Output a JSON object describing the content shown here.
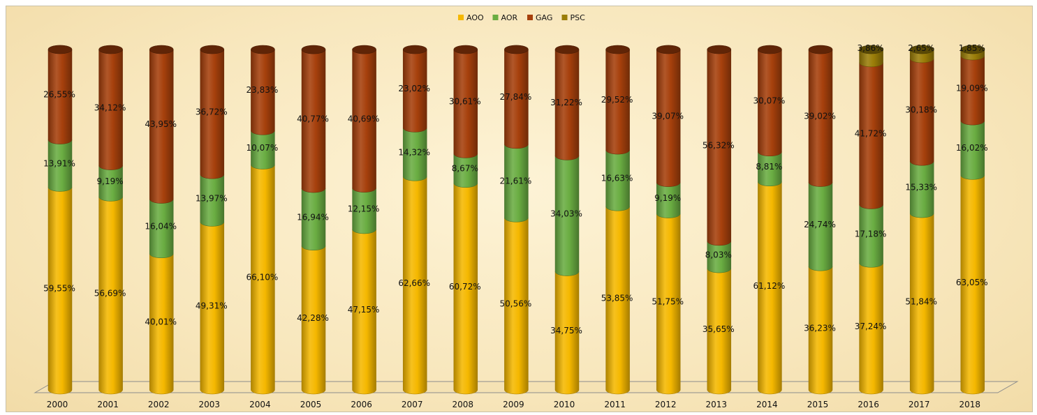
{
  "chart_data": {
    "type": "bar",
    "stacked": "percent",
    "style": "3d-cylinder",
    "title": "",
    "xlabel": "",
    "ylabel": "",
    "ylim": [
      0,
      100
    ],
    "grid": false,
    "legend_position": "top",
    "categories": [
      "2000",
      "2001",
      "2002",
      "2003",
      "2004",
      "2005",
      "2006",
      "2007",
      "2008",
      "2009",
      "2010",
      "2011",
      "2012",
      "2013",
      "2014",
      "2015",
      "2016",
      "2017",
      "2018"
    ],
    "series": [
      {
        "name": "AOO",
        "color": "#f5b800",
        "values": [
          59.55,
          56.69,
          40.01,
          49.31,
          66.1,
          42.28,
          47.15,
          62.66,
          60.72,
          50.56,
          34.75,
          53.85,
          51.75,
          35.65,
          61.12,
          36.23,
          37.24,
          51.84,
          63.05
        ],
        "labels": [
          "59,55%",
          "56,69%",
          "40,01%",
          "49,31%",
          "66,10%",
          "42,28%",
          "47,15%",
          "62,66%",
          "60,72%",
          "50,56%",
          "34,75%",
          "53,85%",
          "51,75%",
          "35,65%",
          "61,12%",
          "36,23%",
          "37,24%",
          "51,84%",
          "63,05%"
        ]
      },
      {
        "name": "AOR",
        "color": "#6aad42",
        "values": [
          13.91,
          9.19,
          16.04,
          13.97,
          10.07,
          16.94,
          12.15,
          14.32,
          8.67,
          21.61,
          34.03,
          16.63,
          9.19,
          8.03,
          8.81,
          24.74,
          17.18,
          15.33,
          16.02
        ],
        "labels": [
          "13,91%",
          "9,19%",
          "16,04%",
          "13,97%",
          "10,07%",
          "16,94%",
          "12,15%",
          "14,32%",
          "8,67%",
          "21,61%",
          "34,03%",
          "16,63%",
          "9,19%",
          "8,03%",
          "8,81%",
          "24,74%",
          "17,18%",
          "15,33%",
          "16,02%"
        ]
      },
      {
        "name": "GAG",
        "color": "#a6400c",
        "values": [
          26.55,
          34.12,
          43.95,
          36.72,
          23.83,
          40.77,
          40.69,
          23.02,
          30.61,
          27.84,
          31.22,
          29.52,
          39.07,
          56.32,
          30.07,
          39.02,
          41.72,
          30.18,
          19.09
        ],
        "labels": [
          "26,55%",
          "34,12%",
          "43,95%",
          "36,72%",
          "23,83%",
          "40,77%",
          "40,69%",
          "23,02%",
          "30,61%",
          "27,84%",
          "31,22%",
          "29,52%",
          "39,07%",
          "56,32%",
          "30,07%",
          "39,02%",
          "41,72%",
          "30,18%",
          "19,09%"
        ]
      },
      {
        "name": "PSC",
        "color": "#9a7d08",
        "values": [
          0,
          0,
          0,
          0,
          0,
          0,
          0,
          0,
          0,
          0,
          0,
          0,
          0,
          0,
          0,
          0,
          3.86,
          2.65,
          1.85
        ],
        "labels": [
          "",
          "",
          "",
          "",
          "",
          "",
          "",
          "",
          "",
          "",
          "",
          "",
          "",
          "",
          "",
          "",
          "3,86%",
          "2,65%",
          "1,85%"
        ]
      }
    ]
  }
}
